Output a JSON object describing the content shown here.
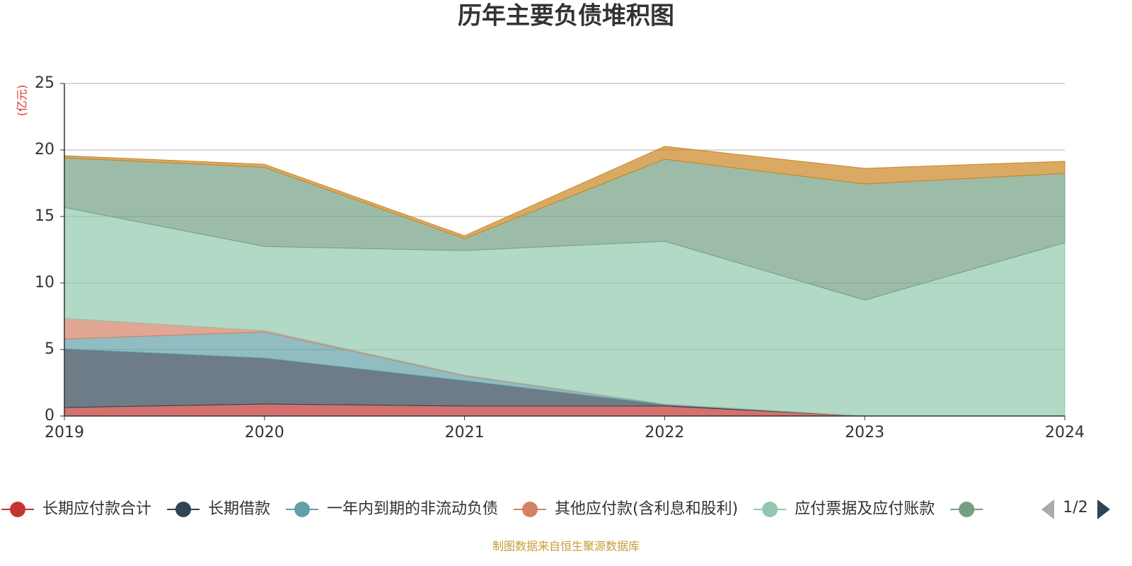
{
  "chart_data": {
    "type": "stacked_area",
    "title": "历年主要负债堆积图",
    "unit_label": "(亿元)",
    "source_note": "制图数据来自恒生聚源数据库",
    "categories": [
      "2019",
      "2020",
      "2021",
      "2022",
      "2023",
      "2024"
    ],
    "ylim": [
      0,
      25
    ],
    "yticks": [
      0,
      5,
      10,
      15,
      20,
      25
    ],
    "grid": true,
    "legend_page": "1/2",
    "series": [
      {
        "name": "长期应付款合计",
        "color": "#c23531",
        "values": [
          0.64,
          0.9,
          0.75,
          0.75,
          0,
          0
        ]
      },
      {
        "name": "长期借款",
        "color": "#2f4554",
        "values": [
          4.4,
          3.45,
          1.9,
          0.1,
          0,
          0
        ]
      },
      {
        "name": "一年内到期的非流动负债",
        "color": "#61a0a8",
        "values": [
          0.75,
          1.97,
          0.37,
          0.03,
          0,
          0
        ]
      },
      {
        "name": "其他应付款(含利息和股利)",
        "color": "#d48265",
        "values": [
          1.55,
          0.1,
          0.05,
          0.02,
          0,
          0
        ]
      },
      {
        "name": "应付票据及应付账款",
        "color": "#91c7ae",
        "values": [
          8.34,
          6.33,
          9.37,
          12.24,
          8.72,
          13.03
        ]
      },
      {
        "color": "#749f83",
        "values": [
          3.73,
          5.95,
          0.9,
          6.17,
          8.73,
          5.21
        ]
      },
      {
        "color": "#ca8622",
        "values": [
          0.16,
          0.22,
          0.21,
          0.96,
          1.17,
          0.91
        ],
        "in_legend": false
      }
    ]
  }
}
